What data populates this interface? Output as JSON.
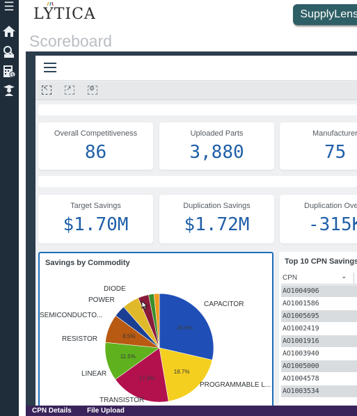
{
  "app": {
    "logo_text": "LYTICA",
    "page_title": "Scoreboard",
    "brand_button": "SupplyLens"
  },
  "rail": {
    "icons": [
      "menu-icon",
      "home-icon",
      "search-chip-icon",
      "calculator-dollar-icon",
      "graduate-icon"
    ]
  },
  "toolbar": {
    "tools": [
      "select-tool-icon",
      "export-tool-icon",
      "settings-tool-icon"
    ]
  },
  "kpis": {
    "overall_competitiveness": {
      "label": "Overall Competitiveness",
      "value": "86"
    },
    "uploaded_parts": {
      "label": "Uploaded Parts",
      "value": "3,880"
    },
    "manufacturers": {
      "label": "Manufacturer",
      "value": "75"
    },
    "target_savings": {
      "label": "Target Savings",
      "value": "$1.70M"
    },
    "duplication_savings": {
      "label": "Duplication Savings",
      "value": "$1.72M"
    },
    "duplication_overspend": {
      "label": "Duplication Ove",
      "value": "-315K"
    }
  },
  "chart_data": {
    "type": "pie",
    "title": "Savings by Commodity",
    "slices": [
      {
        "name": "CAPACITOR",
        "value": 28.6,
        "label": "28.6%",
        "color": "#1f4fb6"
      },
      {
        "name": "PROGRAMMABLE L...",
        "value": 18.7,
        "label": "18.7%",
        "color": "#f4cf1f"
      },
      {
        "name": "TRANSISTOR",
        "value": 17.8,
        "label": "17.8%",
        "color": "#b3114e"
      },
      {
        "name": "LINEAR",
        "value": 11.5,
        "label": "11.5%",
        "color": "#5fb21e"
      },
      {
        "name": "RESISTOR",
        "value": 8.5,
        "label": "8.5%",
        "color": "#b85a12"
      },
      {
        "name": "SEMICONDUCTO...",
        "value": 3.5,
        "label": "",
        "color": "#1a3f93"
      },
      {
        "name": "POWER",
        "value": 5.0,
        "label": "",
        "color": "#e0b92a"
      },
      {
        "name": "DIODE",
        "value": 3.2,
        "label": "",
        "color": "#8a1a3a"
      },
      {
        "name": "",
        "value": 1.6,
        "label": "",
        "color": "#3a8f2a"
      },
      {
        "name": "",
        "value": 1.6,
        "label": "",
        "color": "#f29a1b"
      }
    ]
  },
  "top_cpn": {
    "title": "Top 10 CPN Savings",
    "column": "CPN",
    "rows": [
      "AO1004906",
      "AO1001586",
      "AO1005695",
      "AO1002419",
      "AO1001916",
      "AO1003940",
      "AO1005000",
      "AO1004578",
      "AO1003534"
    ]
  },
  "bottom_tabs": [
    "CPN Details",
    "File Upload"
  ]
}
